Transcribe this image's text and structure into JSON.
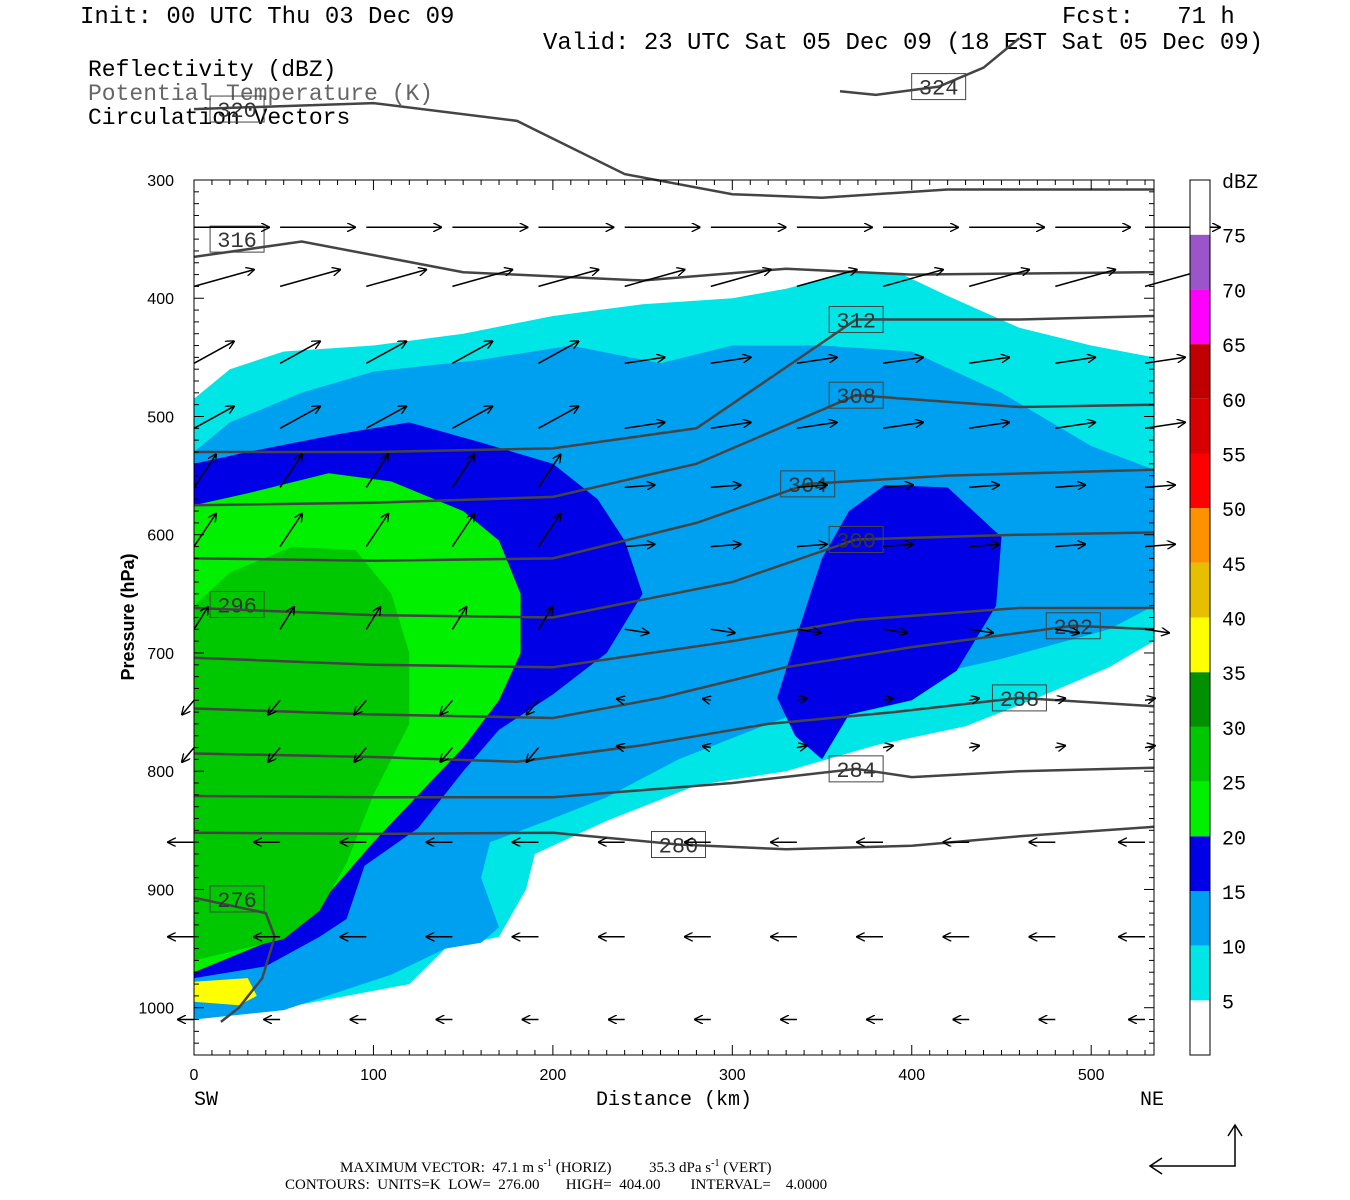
{
  "header": {
    "init": "Init: 00 UTC Thu 03 Dec 09",
    "fcst": "Fcst:   71 h",
    "valid": "Valid: 23 UTC Sat 05 Dec 09 (18 EST Sat 05 Dec 09)"
  },
  "legend_fields": [
    "Reflectivity (dBZ)",
    "Potential Temperature (K)",
    "Circulation Vectors"
  ],
  "footer": {
    "vector_prefix": "MAXIMUM VECTOR:  47.1 m s",
    "vector_mid": " (HORIZ)          35.3 dPa s",
    "vector_suffix": " (VERT)",
    "exponent": "-1",
    "contours": "CONTOURS:  UNITS=K  LOW=  276.00       HIGH=  404.00        INTERVAL=    4.0000"
  },
  "chart_data": {
    "type": "contour-cross-section",
    "xlabel": "Distance (km)",
    "ylabel": "Pressure (hPa)",
    "xlim": [
      0,
      535
    ],
    "ylim": [
      1040,
      300
    ],
    "x_ticks": [
      "0",
      "100",
      "200",
      "300",
      "400",
      "500"
    ],
    "y_ticks": [
      "300",
      "400",
      "500",
      "600",
      "700",
      "800",
      "900",
      "1000"
    ],
    "x_ends": [
      "SW",
      "NE"
    ],
    "colorbar": {
      "unit": "dBZ",
      "levels": [
        "5",
        "10",
        "15",
        "20",
        "25",
        "30",
        "35",
        "40",
        "45",
        "50",
        "55",
        "60",
        "65",
        "70",
        "75"
      ],
      "colors": [
        "#ffffff",
        "#00e6e6",
        "#00a0f0",
        "#0000e6",
        "#00f000",
        "#00c800",
        "#009000",
        "#ffff00",
        "#e6c000",
        "#ff9000",
        "#ff0000",
        "#d80000",
        "#c00000",
        "#ff00ff",
        "#9955c9",
        "#ffffff"
      ]
    },
    "reflectivity_polygons": [
      {
        "dbz": 5,
        "points": [
          [
            0,
            485
          ],
          [
            20,
            460
          ],
          [
            50,
            445
          ],
          [
            100,
            440
          ],
          [
            150,
            430
          ],
          [
            200,
            415
          ],
          [
            250,
            405
          ],
          [
            300,
            400
          ],
          [
            330,
            392
          ],
          [
            365,
            378
          ],
          [
            395,
            380
          ],
          [
            420,
            398
          ],
          [
            460,
            425
          ],
          [
            500,
            440
          ],
          [
            535,
            450
          ],
          [
            535,
            690
          ],
          [
            510,
            712
          ],
          [
            470,
            738
          ],
          [
            430,
            762
          ],
          [
            380,
            778
          ],
          [
            330,
            800
          ],
          [
            280,
            812
          ],
          [
            230,
            842
          ],
          [
            190,
            870
          ],
          [
            185,
            900
          ],
          [
            170,
            940
          ],
          [
            140,
            950
          ],
          [
            120,
            980
          ],
          [
            50,
            1000
          ],
          [
            0,
            1010
          ]
        ]
      },
      {
        "dbz": 10,
        "points": [
          [
            0,
            530
          ],
          [
            20,
            505
          ],
          [
            60,
            480
          ],
          [
            100,
            462
          ],
          [
            160,
            452
          ],
          [
            210,
            440
          ],
          [
            260,
            455
          ],
          [
            300,
            440
          ],
          [
            350,
            440
          ],
          [
            400,
            445
          ],
          [
            450,
            480
          ],
          [
            500,
            525
          ],
          [
            535,
            545
          ],
          [
            535,
            660
          ],
          [
            510,
            680
          ],
          [
            450,
            705
          ],
          [
            400,
            722
          ],
          [
            360,
            738
          ],
          [
            320,
            760
          ],
          [
            270,
            790
          ],
          [
            230,
            822
          ],
          [
            200,
            840
          ],
          [
            165,
            860
          ],
          [
            160,
            890
          ],
          [
            170,
            932
          ],
          [
            160,
            945
          ],
          [
            140,
            950
          ],
          [
            110,
            972
          ],
          [
            50,
            1002
          ],
          [
            0,
            1010
          ]
        ]
      },
      {
        "dbz": 15,
        "points": [
          [
            0,
            540
          ],
          [
            30,
            530
          ],
          [
            80,
            515
          ],
          [
            120,
            505
          ],
          [
            160,
            522
          ],
          [
            200,
            540
          ],
          [
            225,
            570
          ],
          [
            240,
            605
          ],
          [
            250,
            650
          ],
          [
            230,
            700
          ],
          [
            200,
            735
          ],
          [
            170,
            765
          ],
          [
            150,
            800
          ],
          [
            125,
            848
          ],
          [
            95,
            880
          ],
          [
            85,
            925
          ],
          [
            70,
            940
          ],
          [
            40,
            965
          ],
          [
            0,
            975
          ]
        ]
      },
      {
        "dbz": 20,
        "points": [
          [
            0,
            575
          ],
          [
            30,
            565
          ],
          [
            75,
            548
          ],
          [
            110,
            555
          ],
          [
            150,
            580
          ],
          [
            170,
            605
          ],
          [
            182,
            650
          ],
          [
            182,
            700
          ],
          [
            170,
            740
          ],
          [
            150,
            780
          ],
          [
            125,
            820
          ],
          [
            100,
            860
          ],
          [
            80,
            895
          ],
          [
            65,
            920
          ],
          [
            45,
            942
          ],
          [
            0,
            970
          ]
        ]
      },
      {
        "dbz": 25,
        "points": [
          [
            0,
            660
          ],
          [
            20,
            632
          ],
          [
            55,
            610
          ],
          [
            90,
            613
          ],
          [
            110,
            650
          ],
          [
            120,
            700
          ],
          [
            120,
            760
          ],
          [
            100,
            820
          ],
          [
            85,
            878
          ],
          [
            70,
            918
          ],
          [
            50,
            942
          ],
          [
            0,
            960
          ]
        ]
      },
      {
        "dbz": 15,
        "points": [
          [
            335,
            690
          ],
          [
            350,
            620
          ],
          [
            365,
            580
          ],
          [
            385,
            558
          ],
          [
            420,
            560
          ],
          [
            450,
            602
          ],
          [
            447,
            660
          ],
          [
            425,
            715
          ],
          [
            400,
            740
          ],
          [
            365,
            752
          ],
          [
            350,
            790
          ],
          [
            335,
            770
          ],
          [
            325,
            738
          ]
        ]
      },
      {
        "dbz": 35,
        "points": [
          [
            0,
            978
          ],
          [
            30,
            975
          ],
          [
            35,
            990
          ],
          [
            25,
            998
          ],
          [
            0,
            995
          ]
        ]
      }
    ],
    "theta_lines": [
      {
        "label": "276",
        "label_at": [
          24,
          908
        ],
        "points": [
          [
            0,
            907
          ],
          [
            40,
            920
          ],
          [
            45,
            940
          ],
          [
            38,
            975
          ],
          [
            25,
            1000
          ],
          [
            15,
            1012
          ]
        ]
      },
      {
        "label": "280",
        "label_at": [
          270,
          862
        ],
        "points": [
          [
            0,
            852
          ],
          [
            100,
            853
          ],
          [
            200,
            852
          ],
          [
            270,
            862
          ],
          [
            330,
            866
          ],
          [
            400,
            863
          ],
          [
            460,
            855
          ],
          [
            535,
            847
          ]
        ]
      },
      {
        "label": "284",
        "label_at": [
          369,
          798
        ],
        "points": [
          [
            0,
            821
          ],
          [
            100,
            822
          ],
          [
            200,
            822
          ],
          [
            300,
            810
          ],
          [
            369,
            798
          ],
          [
            400,
            805
          ],
          [
            460,
            800
          ],
          [
            535,
            797
          ]
        ]
      },
      {
        "label": "288",
        "label_at": [
          460,
          738
        ],
        "points": [
          [
            0,
            785
          ],
          [
            100,
            788
          ],
          [
            180,
            792
          ],
          [
            250,
            778
          ],
          [
            320,
            760
          ],
          [
            390,
            750
          ],
          [
            460,
            738
          ],
          [
            535,
            745
          ]
        ]
      },
      {
        "label": "292",
        "label_at": [
          490,
          677
        ],
        "points": [
          [
            0,
            747
          ],
          [
            100,
            752
          ],
          [
            200,
            755
          ],
          [
            260,
            738
          ],
          [
            330,
            712
          ],
          [
            400,
            695
          ],
          [
            490,
            677
          ],
          [
            535,
            680
          ]
        ]
      },
      {
        "label": "296",
        "label_at": [
          24,
          659
        ],
        "points": [
          [
            0,
            704
          ],
          [
            100,
            710
          ],
          [
            200,
            712
          ],
          [
            300,
            690
          ],
          [
            369,
            672
          ],
          [
            460,
            662
          ],
          [
            535,
            662
          ]
        ]
      },
      {
        "label": "300",
        "label_at": [
          369,
          604
        ],
        "points": [
          [
            0,
            662
          ],
          [
            100,
            668
          ],
          [
            200,
            670
          ],
          [
            300,
            640
          ],
          [
            369,
            604
          ],
          [
            460,
            600
          ],
          [
            535,
            598
          ]
        ]
      },
      {
        "label": "304",
        "label_at": [
          342,
          557
        ],
        "points": [
          [
            0,
            620
          ],
          [
            100,
            622
          ],
          [
            200,
            620
          ],
          [
            280,
            590
          ],
          [
            342,
            557
          ],
          [
            420,
            550
          ],
          [
            535,
            545
          ]
        ]
      },
      {
        "label": "308",
        "label_at": [
          369,
          482
        ],
        "points": [
          [
            0,
            575
          ],
          [
            100,
            573
          ],
          [
            200,
            568
          ],
          [
            280,
            540
          ],
          [
            369,
            482
          ],
          [
            460,
            492
          ],
          [
            535,
            490
          ]
        ]
      },
      {
        "label": "312",
        "label_at": [
          369,
          418
        ],
        "points": [
          [
            0,
            530
          ],
          [
            100,
            530
          ],
          [
            200,
            527
          ],
          [
            280,
            510
          ],
          [
            369,
            418
          ],
          [
            460,
            418
          ],
          [
            535,
            415
          ]
        ]
      },
      {
        "label": "316",
        "label_at": [
          24,
          350
        ],
        "points": [
          [
            0,
            365
          ],
          [
            60,
            352
          ],
          [
            150,
            378
          ],
          [
            250,
            385
          ],
          [
            330,
            375
          ],
          [
            400,
            380
          ],
          [
            535,
            378
          ]
        ]
      },
      {
        "label": "320",
        "label_at": [
          24,
          240
        ],
        "points": [
          [
            0,
            240
          ],
          [
            100,
            235
          ],
          [
            180,
            250
          ],
          [
            240,
            295
          ],
          [
            300,
            312
          ],
          [
            350,
            315
          ],
          [
            420,
            308
          ],
          [
            535,
            308
          ]
        ]
      },
      {
        "label": "324",
        "label_at": [
          415,
          221
        ],
        "points": [
          [
            360,
            225
          ],
          [
            380,
            228
          ],
          [
            415,
            221
          ],
          [
            440,
            205
          ],
          [
            460,
            180
          ]
        ]
      }
    ]
  }
}
